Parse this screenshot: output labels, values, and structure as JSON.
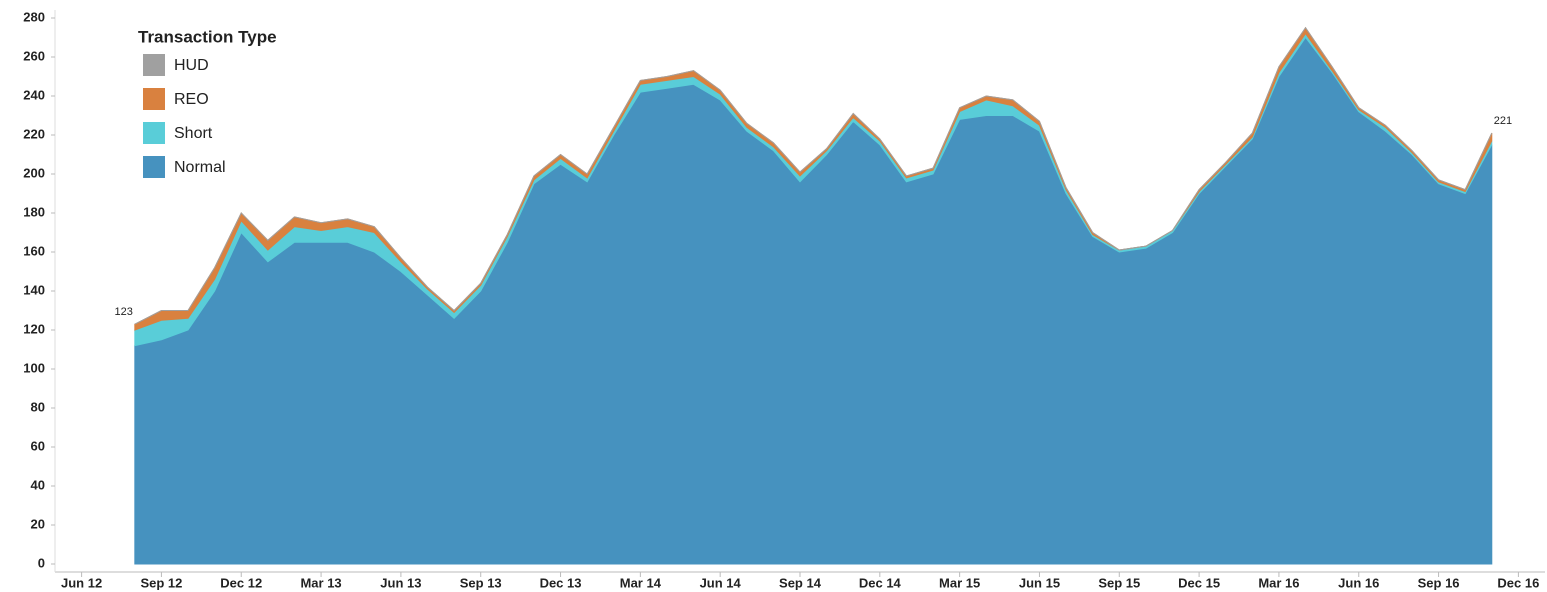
{
  "chart_data": {
    "type": "stacked_area",
    "legend_title": "Transaction Type",
    "legend": "top-left",
    "grid": false,
    "x": [
      "2012-08",
      "2012-09",
      "2012-10",
      "2012-11",
      "2012-12",
      "2013-01",
      "2013-02",
      "2013-03",
      "2013-04",
      "2013-05",
      "2013-06",
      "2013-07",
      "2013-08",
      "2013-09",
      "2013-10",
      "2013-11",
      "2013-12",
      "2014-01",
      "2014-02",
      "2014-03",
      "2014-04",
      "2014-05",
      "2014-06",
      "2014-07",
      "2014-08",
      "2014-09",
      "2014-10",
      "2014-11",
      "2014-12",
      "2015-01",
      "2015-02",
      "2015-03",
      "2015-04",
      "2015-05",
      "2015-06",
      "2015-07",
      "2015-08",
      "2015-09",
      "2015-10",
      "2015-11",
      "2015-12",
      "2016-01",
      "2016-02",
      "2016-03",
      "2016-04",
      "2016-05",
      "2016-06",
      "2016-07",
      "2016-08",
      "2016-09",
      "2016-10",
      "2016-11"
    ],
    "series": [
      {
        "name": "Normal",
        "color": "#4692bf",
        "values": [
          112,
          115,
          120,
          140,
          170,
          155,
          165,
          165,
          165,
          160,
          150,
          138,
          126,
          140,
          165,
          195,
          205,
          196,
          220,
          242,
          244,
          246,
          238,
          222,
          212,
          196,
          210,
          227,
          215,
          196,
          200,
          228,
          230,
          230,
          222,
          190,
          168,
          160,
          162,
          170,
          190,
          204,
          218,
          250,
          270,
          252,
          232,
          222,
          210,
          195,
          190,
          215
        ]
      },
      {
        "name": "Short",
        "color": "#59cdd8",
        "values": [
          8,
          10,
          6,
          6,
          6,
          6,
          8,
          6,
          8,
          10,
          5,
          3,
          3,
          3,
          3,
          2,
          3,
          2,
          2,
          4,
          4,
          4,
          3,
          2,
          2,
          3,
          2,
          2,
          2,
          2,
          2,
          4,
          8,
          5,
          3,
          2,
          1,
          1,
          1,
          1,
          1,
          1,
          1,
          2,
          2,
          1,
          1,
          2,
          1,
          1,
          1,
          2
        ]
      },
      {
        "name": "REO",
        "color": "#d9813f",
        "values": [
          3,
          5,
          4,
          6,
          4,
          5,
          5,
          4,
          4,
          3,
          2,
          1,
          1,
          1,
          1,
          2,
          2,
          2,
          2,
          2,
          2,
          3,
          2,
          2,
          2,
          2,
          1,
          2,
          1,
          1,
          1,
          2,
          2,
          3,
          2,
          1,
          1,
          0,
          0,
          0,
          1,
          1,
          2,
          3,
          3,
          2,
          1,
          1,
          1,
          1,
          1,
          4
        ]
      },
      {
        "name": "HUD",
        "color": "#a0a0a0",
        "values": [
          0,
          0,
          0,
          0,
          0,
          0,
          0,
          0,
          0,
          0,
          0,
          0,
          0,
          0,
          0,
          0,
          0,
          0,
          0,
          0,
          0,
          0,
          0,
          0,
          0,
          0,
          0,
          0,
          0,
          0,
          0,
          0,
          0,
          0,
          0,
          0,
          0,
          0,
          0,
          0,
          0,
          0,
          0,
          0,
          0,
          0,
          0,
          0,
          0,
          0,
          0,
          0
        ]
      }
    ],
    "annotations": [
      123,
      221
    ],
    "ylim": [
      0,
      280
    ],
    "yticks": [
      0,
      20,
      40,
      60,
      80,
      100,
      120,
      140,
      160,
      180,
      200,
      220,
      240,
      260,
      280
    ],
    "xlim": [
      "2012-05",
      "2017-01"
    ],
    "xticks": [
      {
        "value": "2012-06",
        "label": "Jun 12"
      },
      {
        "value": "2012-09",
        "label": "Sep 12"
      },
      {
        "value": "2012-12",
        "label": "Dec 12"
      },
      {
        "value": "2013-03",
        "label": "Mar 13"
      },
      {
        "value": "2013-06",
        "label": "Jun 13"
      },
      {
        "value": "2013-09",
        "label": "Sep 13"
      },
      {
        "value": "2013-12",
        "label": "Dec 13"
      },
      {
        "value": "2014-03",
        "label": "Mar 14"
      },
      {
        "value": "2014-06",
        "label": "Jun 14"
      },
      {
        "value": "2014-09",
        "label": "Sep 14"
      },
      {
        "value": "2014-12",
        "label": "Dec 14"
      },
      {
        "value": "2015-03",
        "label": "Mar 15"
      },
      {
        "value": "2015-06",
        "label": "Jun 15"
      },
      {
        "value": "2015-09",
        "label": "Sep 15"
      },
      {
        "value": "2015-12",
        "label": "Dec 15"
      },
      {
        "value": "2016-03",
        "label": "Mar 16"
      },
      {
        "value": "2016-06",
        "label": "Jun 16"
      },
      {
        "value": "2016-09",
        "label": "Sep 16"
      },
      {
        "value": "2016-12",
        "label": "Dec 16"
      }
    ]
  }
}
